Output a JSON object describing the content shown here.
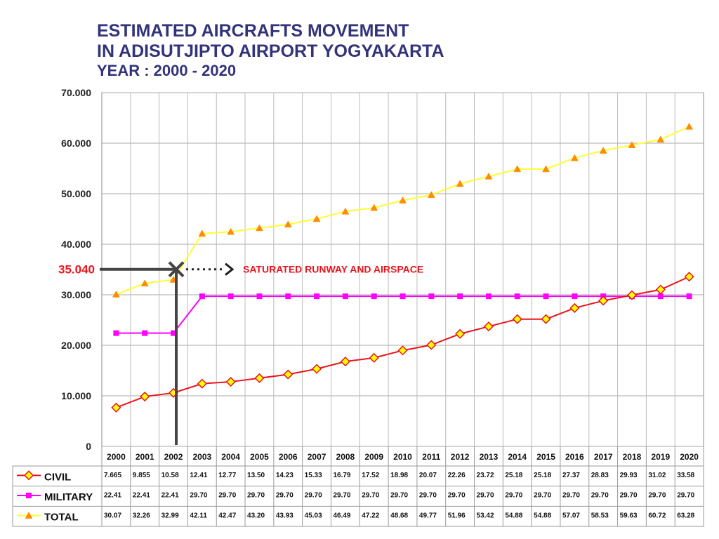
{
  "titles": {
    "line1": "ESTIMATED AIRCRAFTS MOVEMENT",
    "line2": "IN ADISUTJIPTO AIRPORT YOGYAKARTA",
    "line3": "YEAR : 2000 - 2020"
  },
  "colors": {
    "civil": "#e8141c",
    "civil_marker_fill": "#ffff00",
    "military": "#ff00ff",
    "total": "#ffff33",
    "total_marker": "#ff8c00",
    "title": "#33337a",
    "annotation": "#e8141c",
    "arrow": "#444444"
  },
  "chart_data": {
    "type": "line",
    "x": [
      "2000",
      "2001",
      "2002",
      "2003",
      "2004",
      "2005",
      "2006",
      "2007",
      "2008",
      "2009",
      "2010",
      "2011",
      "2012",
      "2013",
      "2014",
      "2015",
      "2016",
      "2017",
      "2018",
      "2019",
      "2020"
    ],
    "ylim": [
      0,
      70000
    ],
    "yticks": [
      0,
      10000,
      20000,
      30000,
      40000,
      50000,
      60000,
      70000
    ],
    "ytick_labels": [
      "0",
      "10.000",
      "20.000",
      "30.000",
      "40.000",
      "50.000",
      "60.000",
      "70.000"
    ],
    "grid": true,
    "series": [
      {
        "name": "CIVIL",
        "marker": "diamond",
        "values": [
          7665,
          9855,
          10580,
          12410,
          12770,
          13500,
          14230,
          15330,
          16790,
          17520,
          18980,
          20070,
          22260,
          23720,
          25180,
          25180,
          27370,
          28830,
          29930,
          31020,
          33580
        ],
        "labels": [
          "7.665",
          "9.855",
          "10.58",
          "12.41",
          "12.77",
          "13.50",
          "14.23",
          "15.33",
          "16.79",
          "17.52",
          "18.98",
          "20.07",
          "22.26",
          "23.72",
          "25.18",
          "25.18",
          "27.37",
          "28.83",
          "29.93",
          "31.02",
          "33.58"
        ]
      },
      {
        "name": "MILITARY",
        "marker": "square",
        "values": [
          22410,
          22410,
          22410,
          29700,
          29700,
          29700,
          29700,
          29700,
          29700,
          29700,
          29700,
          29700,
          29700,
          29700,
          29700,
          29700,
          29700,
          29700,
          29700,
          29700,
          29700
        ],
        "labels": [
          "22.41",
          "22.41",
          "22.41",
          "29.70",
          "29.70",
          "29.70",
          "29.70",
          "29.70",
          "29.70",
          "29.70",
          "29.70",
          "29.70",
          "29.70",
          "29.70",
          "29.70",
          "29.70",
          "29.70",
          "29.70",
          "29.70",
          "29.70",
          "29.70"
        ]
      },
      {
        "name": "TOTAL",
        "marker": "triangle",
        "values": [
          30070,
          32260,
          32990,
          42110,
          42470,
          43200,
          43930,
          45030,
          46490,
          47220,
          48680,
          49770,
          51960,
          53420,
          54880,
          54880,
          57070,
          58530,
          59630,
          60720,
          63280
        ],
        "labels": [
          "30.07",
          "32.26",
          "32.99",
          "42.11",
          "42.47",
          "43.20",
          "43.93",
          "45.03",
          "46.49",
          "47.22",
          "48.68",
          "49.77",
          "51.96",
          "53.42",
          "54.88",
          "54.88",
          "57.07",
          "58.53",
          "59.63",
          "60.72",
          "63.28"
        ]
      }
    ],
    "annotations": [
      {
        "value": 35040,
        "value_label": "35.040",
        "text": "SATURATED RUNWAY AND AIRSPACE",
        "x": "2002"
      }
    ]
  }
}
